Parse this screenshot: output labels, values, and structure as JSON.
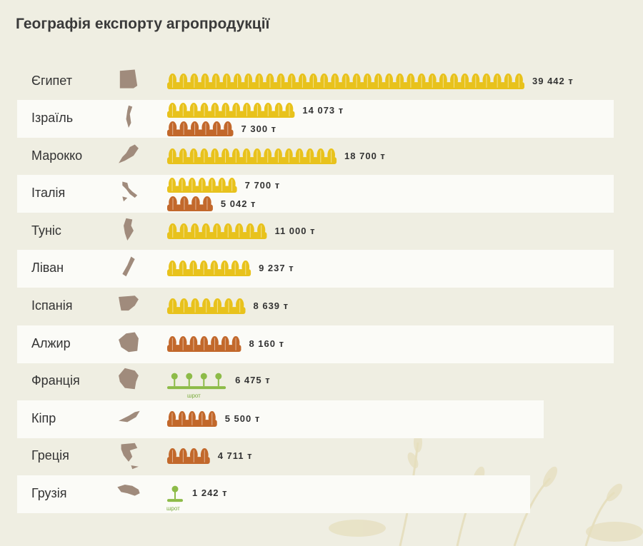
{
  "title": "Географія експорту агропродукції",
  "colors": {
    "wheat": "#e8c21c",
    "barley": "#c2682b",
    "meal": "#8dbb48",
    "map": "#a08b7c",
    "band": "#fbfbf7"
  },
  "legend_words": {
    "meal": "шрот"
  },
  "chart_data": {
    "type": "bar",
    "title": "Географія експорту агропродукції",
    "unit": "т",
    "categories": [
      "Єгипет",
      "Ізраїль",
      "Марокко",
      "Італія",
      "Туніс",
      "Ліван",
      "Іспанія",
      "Алжир",
      "Франція",
      "Кіпр",
      "Греція",
      "Грузія"
    ],
    "rows": [
      {
        "country": "Єгипет",
        "items": [
          {
            "product": "wheat",
            "value": 39442,
            "label": "39 442  т"
          }
        ]
      },
      {
        "country": "Ізраїль",
        "items": [
          {
            "product": "wheat",
            "value": 14073,
            "label": "14 073  т"
          },
          {
            "product": "barley",
            "value": 7300,
            "label": "7 300  т"
          }
        ]
      },
      {
        "country": "Марокко",
        "items": [
          {
            "product": "wheat",
            "value": 18700,
            "label": "18 700  т"
          }
        ]
      },
      {
        "country": "Італія",
        "items": [
          {
            "product": "wheat",
            "value": 7700,
            "label": "7 700  т"
          },
          {
            "product": "barley",
            "value": 5042,
            "label": "5 042  т"
          }
        ]
      },
      {
        "country": "Туніс",
        "items": [
          {
            "product": "wheat",
            "value": 11000,
            "label": "11 000  т"
          }
        ]
      },
      {
        "country": "Ліван",
        "items": [
          {
            "product": "wheat",
            "value": 9237,
            "label": "9 237  т"
          }
        ]
      },
      {
        "country": "Іспанія",
        "items": [
          {
            "product": "wheat",
            "value": 8639,
            "label": "8 639  т"
          }
        ]
      },
      {
        "country": "Алжир",
        "items": [
          {
            "product": "barley",
            "value": 8160,
            "label": "8 160  т"
          }
        ]
      },
      {
        "country": "Франція",
        "items": [
          {
            "product": "meal",
            "value": 6475,
            "label": "6 475  т"
          }
        ]
      },
      {
        "country": "Кіпр",
        "items": [
          {
            "product": "barley",
            "value": 5500,
            "label": "5 500  т"
          }
        ]
      },
      {
        "country": "Греція",
        "items": [
          {
            "product": "barley",
            "value": 4711,
            "label": "4 711  т"
          }
        ]
      },
      {
        "country": "Грузія",
        "items": [
          {
            "product": "meal",
            "value": 1242,
            "label": "1 242  т"
          }
        ]
      }
    ]
  }
}
